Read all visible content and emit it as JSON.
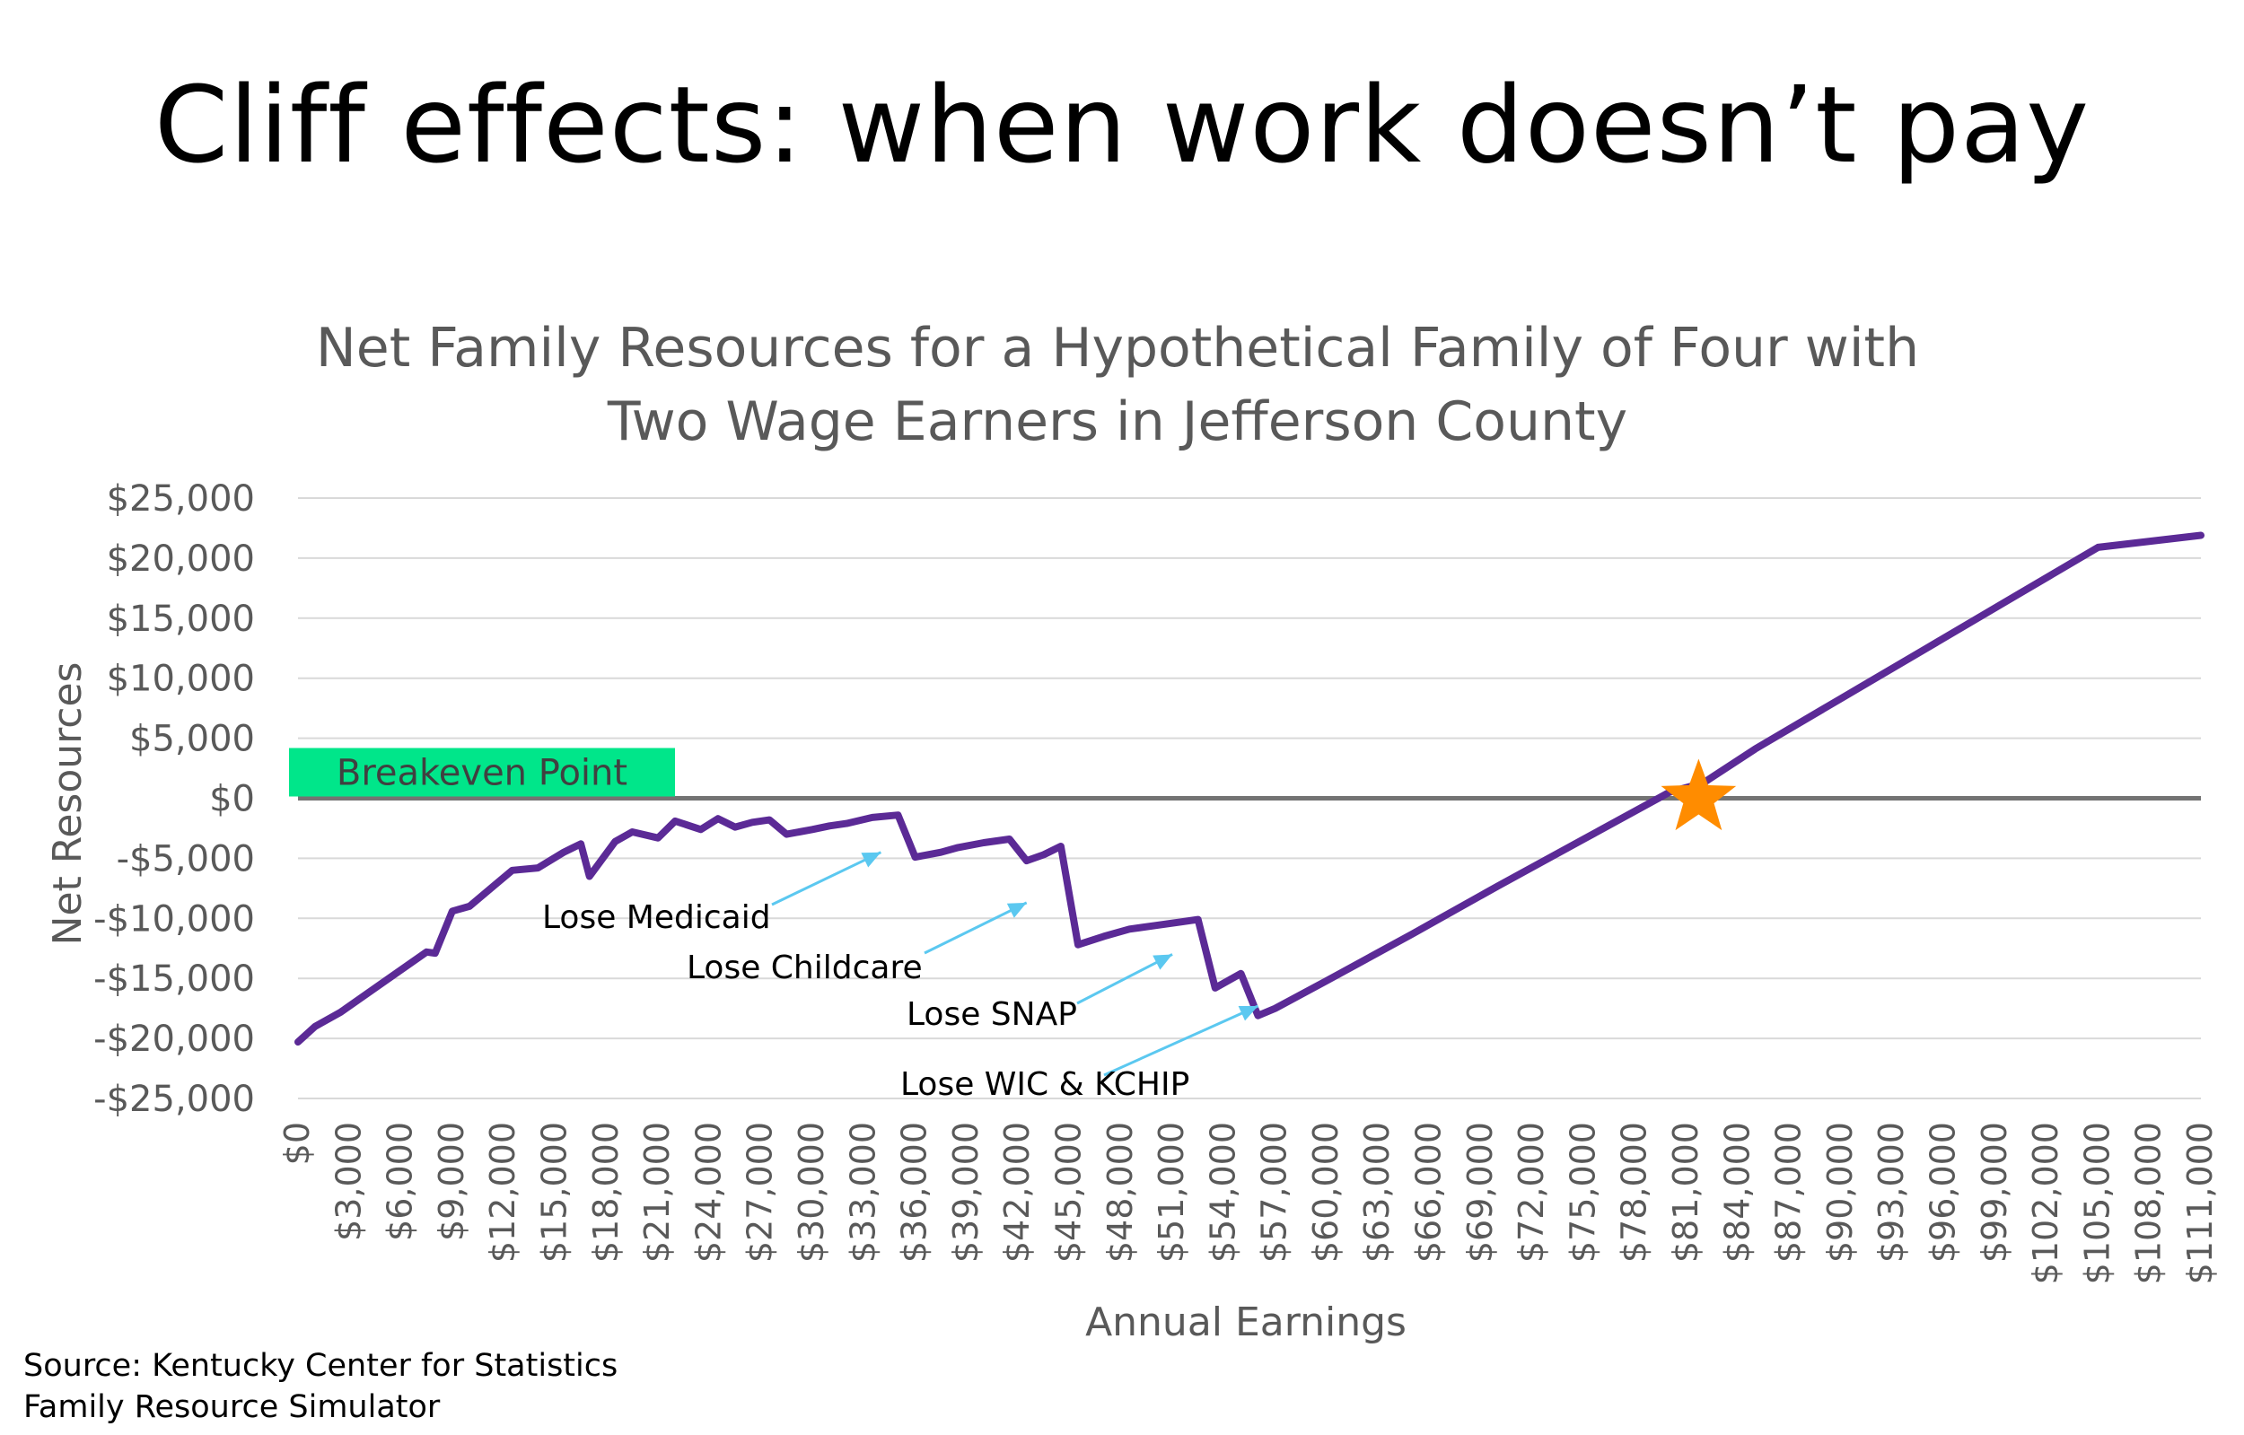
{
  "slide_title": "Cliff effects: when work doesn’t pay",
  "source": {
    "line1": "Source: Kentucky Center for Statistics",
    "line2": "Family Resource Simulator"
  },
  "chart_data": {
    "type": "line",
    "title_lines": [
      "Net Family Resources for a Hypothetical Family of Four with",
      "Two Wage Earners in Jefferson County"
    ],
    "xlabel": "Annual Earnings",
    "ylabel": "Net Resources",
    "ylim": [
      -25000,
      25000
    ],
    "y_ticks": [
      25000,
      20000,
      15000,
      10000,
      5000,
      0,
      -5000,
      -10000,
      -15000,
      -20000,
      -25000
    ],
    "y_tick_labels": [
      "$25,000",
      "$20,000",
      "$15,000",
      "$10,000",
      "$5,000",
      "$0",
      "-$5,000",
      "-$10,000",
      "-$15,000",
      "-$20,000",
      "-$25,000"
    ],
    "xlim": [
      0,
      111000
    ],
    "x_ticks": [
      0,
      3000,
      6000,
      9000,
      12000,
      15000,
      18000,
      21000,
      24000,
      27000,
      30000,
      33000,
      36000,
      39000,
      42000,
      45000,
      48000,
      51000,
      54000,
      57000,
      60000,
      63000,
      66000,
      69000,
      72000,
      75000,
      78000,
      81000,
      84000,
      87000,
      90000,
      93000,
      96000,
      99000,
      102000,
      105000,
      108000,
      111000
    ],
    "x_tick_labels": [
      "$0",
      "$3,000",
      "$6,000",
      "$9,000",
      "$12,000",
      "$15,000",
      "$18,000",
      "$21,000",
      "$24,000",
      "$27,000",
      "$30,000",
      "$33,000",
      "$36,000",
      "$39,000",
      "$42,000",
      "$45,000",
      "$48,000",
      "$51,000",
      "$54,000",
      "$57,000",
      "$60,000",
      "$63,000",
      "$66,000",
      "$69,000",
      "$72,000",
      "$75,000",
      "$78,000",
      "$81,000",
      "$84,000",
      "$87,000",
      "$90,000",
      "$93,000",
      "$96,000",
      "$99,000",
      "$102,000",
      "$105,000",
      "$108,000",
      "$111,000"
    ],
    "grid": true,
    "series": [
      {
        "color": "#5b2a96",
        "x": [
          0,
          1000,
          2500,
          5000,
          7500,
          8000,
          9000,
          10000,
          11500,
          12500,
          14000,
          15500,
          16500,
          17000,
          18500,
          19500,
          21000,
          22000,
          23500,
          24500,
          25500,
          26500,
          27500,
          28500,
          30000,
          31000,
          32000,
          33500,
          35000,
          36000,
          37500,
          38500,
          40000,
          41500,
          42500,
          43500,
          44500,
          45500,
          47000,
          48500,
          50000,
          51500,
          52500,
          53500,
          55000,
          56000,
          57000,
          60000,
          65000,
          70000,
          75000,
          80000,
          82000,
          85000,
          90000,
          95000,
          100000,
          105000,
          111000
        ],
        "y": [
          -20300,
          -19000,
          -17800,
          -15300,
          -12800,
          -12900,
          -9400,
          -9000,
          -7200,
          -6000,
          -5800,
          -4500,
          -3800,
          -6500,
          -3600,
          -2800,
          -3300,
          -1900,
          -2600,
          -1700,
          -2400,
          -2000,
          -1800,
          -3000,
          -2600,
          -2300,
          -2100,
          -1600,
          -1400,
          -4900,
          -4500,
          -4100,
          -3700,
          -3400,
          -5200,
          -4700,
          -4000,
          -12200,
          -11500,
          -10900,
          -10600,
          -10300,
          -10100,
          -15800,
          -14600,
          -18100,
          -17500,
          -15200,
          -11300,
          -7300,
          -3400,
          500,
          1300,
          4100,
          8300,
          12500,
          16700,
          20900,
          21900
        ]
      }
    ],
    "reference_line": {
      "y": 0,
      "label": "Breakeven Point",
      "label_color": "#00e68a",
      "line_color": "#737373"
    },
    "marker": {
      "type": "star",
      "x": 81700,
      "y": 0,
      "color": "#ff8c00"
    },
    "annotations": [
      {
        "text": "Lose Medicaid",
        "arrow_to_x": 34000,
        "arrow_to_y": -4500
      },
      {
        "text": "Lose Childcare",
        "arrow_to_x": 42500,
        "arrow_to_y": -8700
      },
      {
        "text": "Lose SNAP",
        "arrow_to_x": 51000,
        "arrow_to_y": -13000
      },
      {
        "text": "Lose WIC & KCHIP",
        "arrow_to_x": 56000,
        "arrow_to_y": -17300
      }
    ],
    "annotation_arrow_color": "#5bc8f0"
  }
}
